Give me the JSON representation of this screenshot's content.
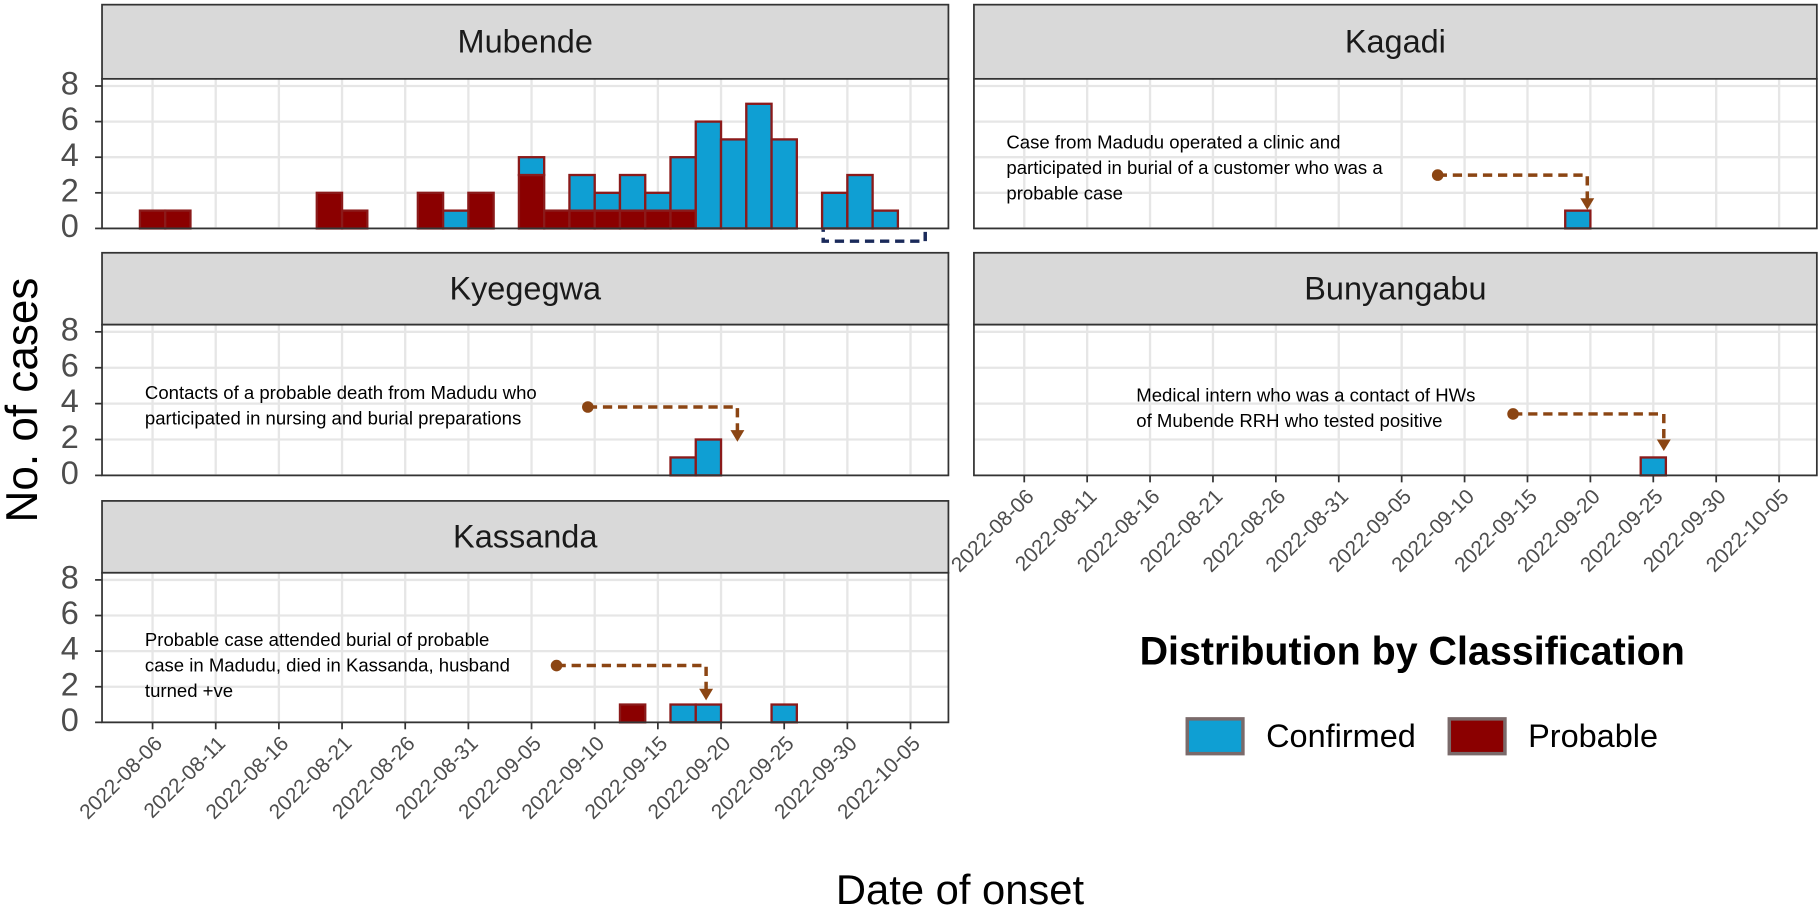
{
  "chart_data": [
    {
      "type": "bar",
      "title": "Mubende",
      "xlim": [
        "2022-08-02",
        "2022-10-08"
      ],
      "ylim": [
        0,
        8.4
      ],
      "xticks": [
        "2022-08-06",
        "2022-08-11",
        "2022-08-16",
        "2022-08-21",
        "2022-08-26",
        "2022-08-31",
        "2022-09-05",
        "2022-09-10",
        "2022-09-15",
        "2022-09-20",
        "2022-09-25",
        "2022-09-30",
        "2022-10-05"
      ],
      "yticks": [
        0,
        2,
        4,
        6,
        8
      ],
      "grid": true,
      "stacked": true,
      "edgecolor": "#8b1a1a",
      "x": [
        "2022-08-06",
        "2022-08-08",
        "2022-08-20",
        "2022-08-22",
        "2022-08-28",
        "2022-08-30",
        "2022-09-01",
        "2022-09-05",
        "2022-09-07",
        "2022-09-09",
        "2022-09-11",
        "2022-09-13",
        "2022-09-15",
        "2022-09-17",
        "2022-09-19",
        "2022-09-21",
        "2022-09-23",
        "2022-09-25",
        "2022-09-29",
        "2022-10-01",
        "2022-10-03"
      ],
      "series": [
        {
          "name": "Confirmed",
          "color": "#0f9fd3",
          "values": [
            null,
            null,
            null,
            null,
            null,
            1,
            null,
            1,
            null,
            2,
            1,
            2,
            1,
            3,
            6,
            5,
            7,
            5,
            2,
            3,
            1
          ]
        },
        {
          "name": "Probable",
          "color": "#8b0000",
          "values": [
            1,
            1,
            2,
            1,
            2,
            null,
            2,
            3,
            1,
            1,
            1,
            1,
            1,
            1,
            null,
            null,
            null,
            null,
            null,
            null,
            null
          ]
        }
      ]
    },
    {
      "type": "bar",
      "title": "Kagadi",
      "xlim": [
        "2022-08-02",
        "2022-10-08"
      ],
      "ylim": [
        0,
        8.4
      ],
      "xticks": [
        "2022-08-06",
        "2022-08-11",
        "2022-08-16",
        "2022-08-21",
        "2022-08-26",
        "2022-08-31",
        "2022-09-05",
        "2022-09-10",
        "2022-09-15",
        "2022-09-20",
        "2022-09-25",
        "2022-09-30",
        "2022-10-05"
      ],
      "yticks": [
        0,
        2,
        4,
        6,
        8
      ],
      "grid": true,
      "stacked": true,
      "edgecolor": "#8b1a1a",
      "x": [
        "2022-09-19"
      ],
      "series": [
        {
          "name": "Confirmed",
          "color": "#0f9fd3",
          "values": [
            1
          ]
        },
        {
          "name": "Probable",
          "color": "#8b0000",
          "values": [
            null
          ]
        }
      ],
      "annotation": [
        "Case from Madudu operated a clinic and",
        "participated in burial of a customer who was a",
        "probable case"
      ]
    },
    {
      "type": "bar",
      "title": "Kyegegwa",
      "xlim": [
        "2022-08-02",
        "2022-10-08"
      ],
      "ylim": [
        0,
        8.4
      ],
      "xticks": [
        "2022-08-06",
        "2022-08-11",
        "2022-08-16",
        "2022-08-21",
        "2022-08-26",
        "2022-08-31",
        "2022-09-05",
        "2022-09-10",
        "2022-09-15",
        "2022-09-20",
        "2022-09-25",
        "2022-09-30",
        "2022-10-05"
      ],
      "yticks": [
        0,
        2,
        4,
        6,
        8
      ],
      "grid": true,
      "stacked": true,
      "edgecolor": "#8b1a1a",
      "x": [
        "2022-09-17",
        "2022-09-19"
      ],
      "series": [
        {
          "name": "Confirmed",
          "color": "#0f9fd3",
          "values": [
            1,
            2
          ]
        },
        {
          "name": "Probable",
          "color": "#8b0000",
          "values": [
            null,
            null
          ]
        }
      ],
      "annotation": [
        "Contacts of a probable death from Madudu who",
        "participated in nursing and burial preparations"
      ]
    },
    {
      "type": "bar",
      "title": "Bunyangabu",
      "xlim": [
        "2022-08-02",
        "2022-10-08"
      ],
      "ylim": [
        0,
        8.4
      ],
      "xticks": [
        "2022-08-06",
        "2022-08-11",
        "2022-08-16",
        "2022-08-21",
        "2022-08-26",
        "2022-08-31",
        "2022-09-05",
        "2022-09-10",
        "2022-09-15",
        "2022-09-20",
        "2022-09-25",
        "2022-09-30",
        "2022-10-05"
      ],
      "yticks": [
        0,
        2,
        4,
        6,
        8
      ],
      "grid": true,
      "stacked": true,
      "edgecolor": "#8b1a1a",
      "x": [
        "2022-09-25"
      ],
      "series": [
        {
          "name": "Confirmed",
          "color": "#0f9fd3",
          "values": [
            1
          ]
        },
        {
          "name": "Probable",
          "color": "#8b0000",
          "values": [
            null
          ]
        }
      ],
      "annotation": [
        "Medical intern who was a contact of HWs",
        "of Mubende RRH who tested positive"
      ]
    },
    {
      "type": "bar",
      "title": "Kassanda",
      "xlim": [
        "2022-08-02",
        "2022-10-08"
      ],
      "ylim": [
        0,
        8.4
      ],
      "xticks": [
        "2022-08-06",
        "2022-08-11",
        "2022-08-16",
        "2022-08-21",
        "2022-08-26",
        "2022-08-31",
        "2022-09-05",
        "2022-09-10",
        "2022-09-15",
        "2022-09-20",
        "2022-09-25",
        "2022-09-30",
        "2022-10-05"
      ],
      "yticks": [
        0,
        2,
        4,
        6,
        8
      ],
      "grid": true,
      "stacked": true,
      "edgecolor": "#8b1a1a",
      "x": [
        "2022-09-13",
        "2022-09-17",
        "2022-09-19",
        "2022-09-25"
      ],
      "series": [
        {
          "name": "Confirmed",
          "color": "#0f9fd3",
          "values": [
            null,
            1,
            1,
            1
          ]
        },
        {
          "name": "Probable",
          "color": "#8b0000",
          "values": [
            1,
            null,
            null,
            null
          ]
        }
      ],
      "annotation": [
        "Probable case attended burial of probable",
        "case in Madudu, died in Kassanda, husband",
        "turned +ve"
      ]
    }
  ],
  "y_label": "No. of cases",
  "x_label": "Date of onset",
  "legend_title": "Distribution by Classification"
}
